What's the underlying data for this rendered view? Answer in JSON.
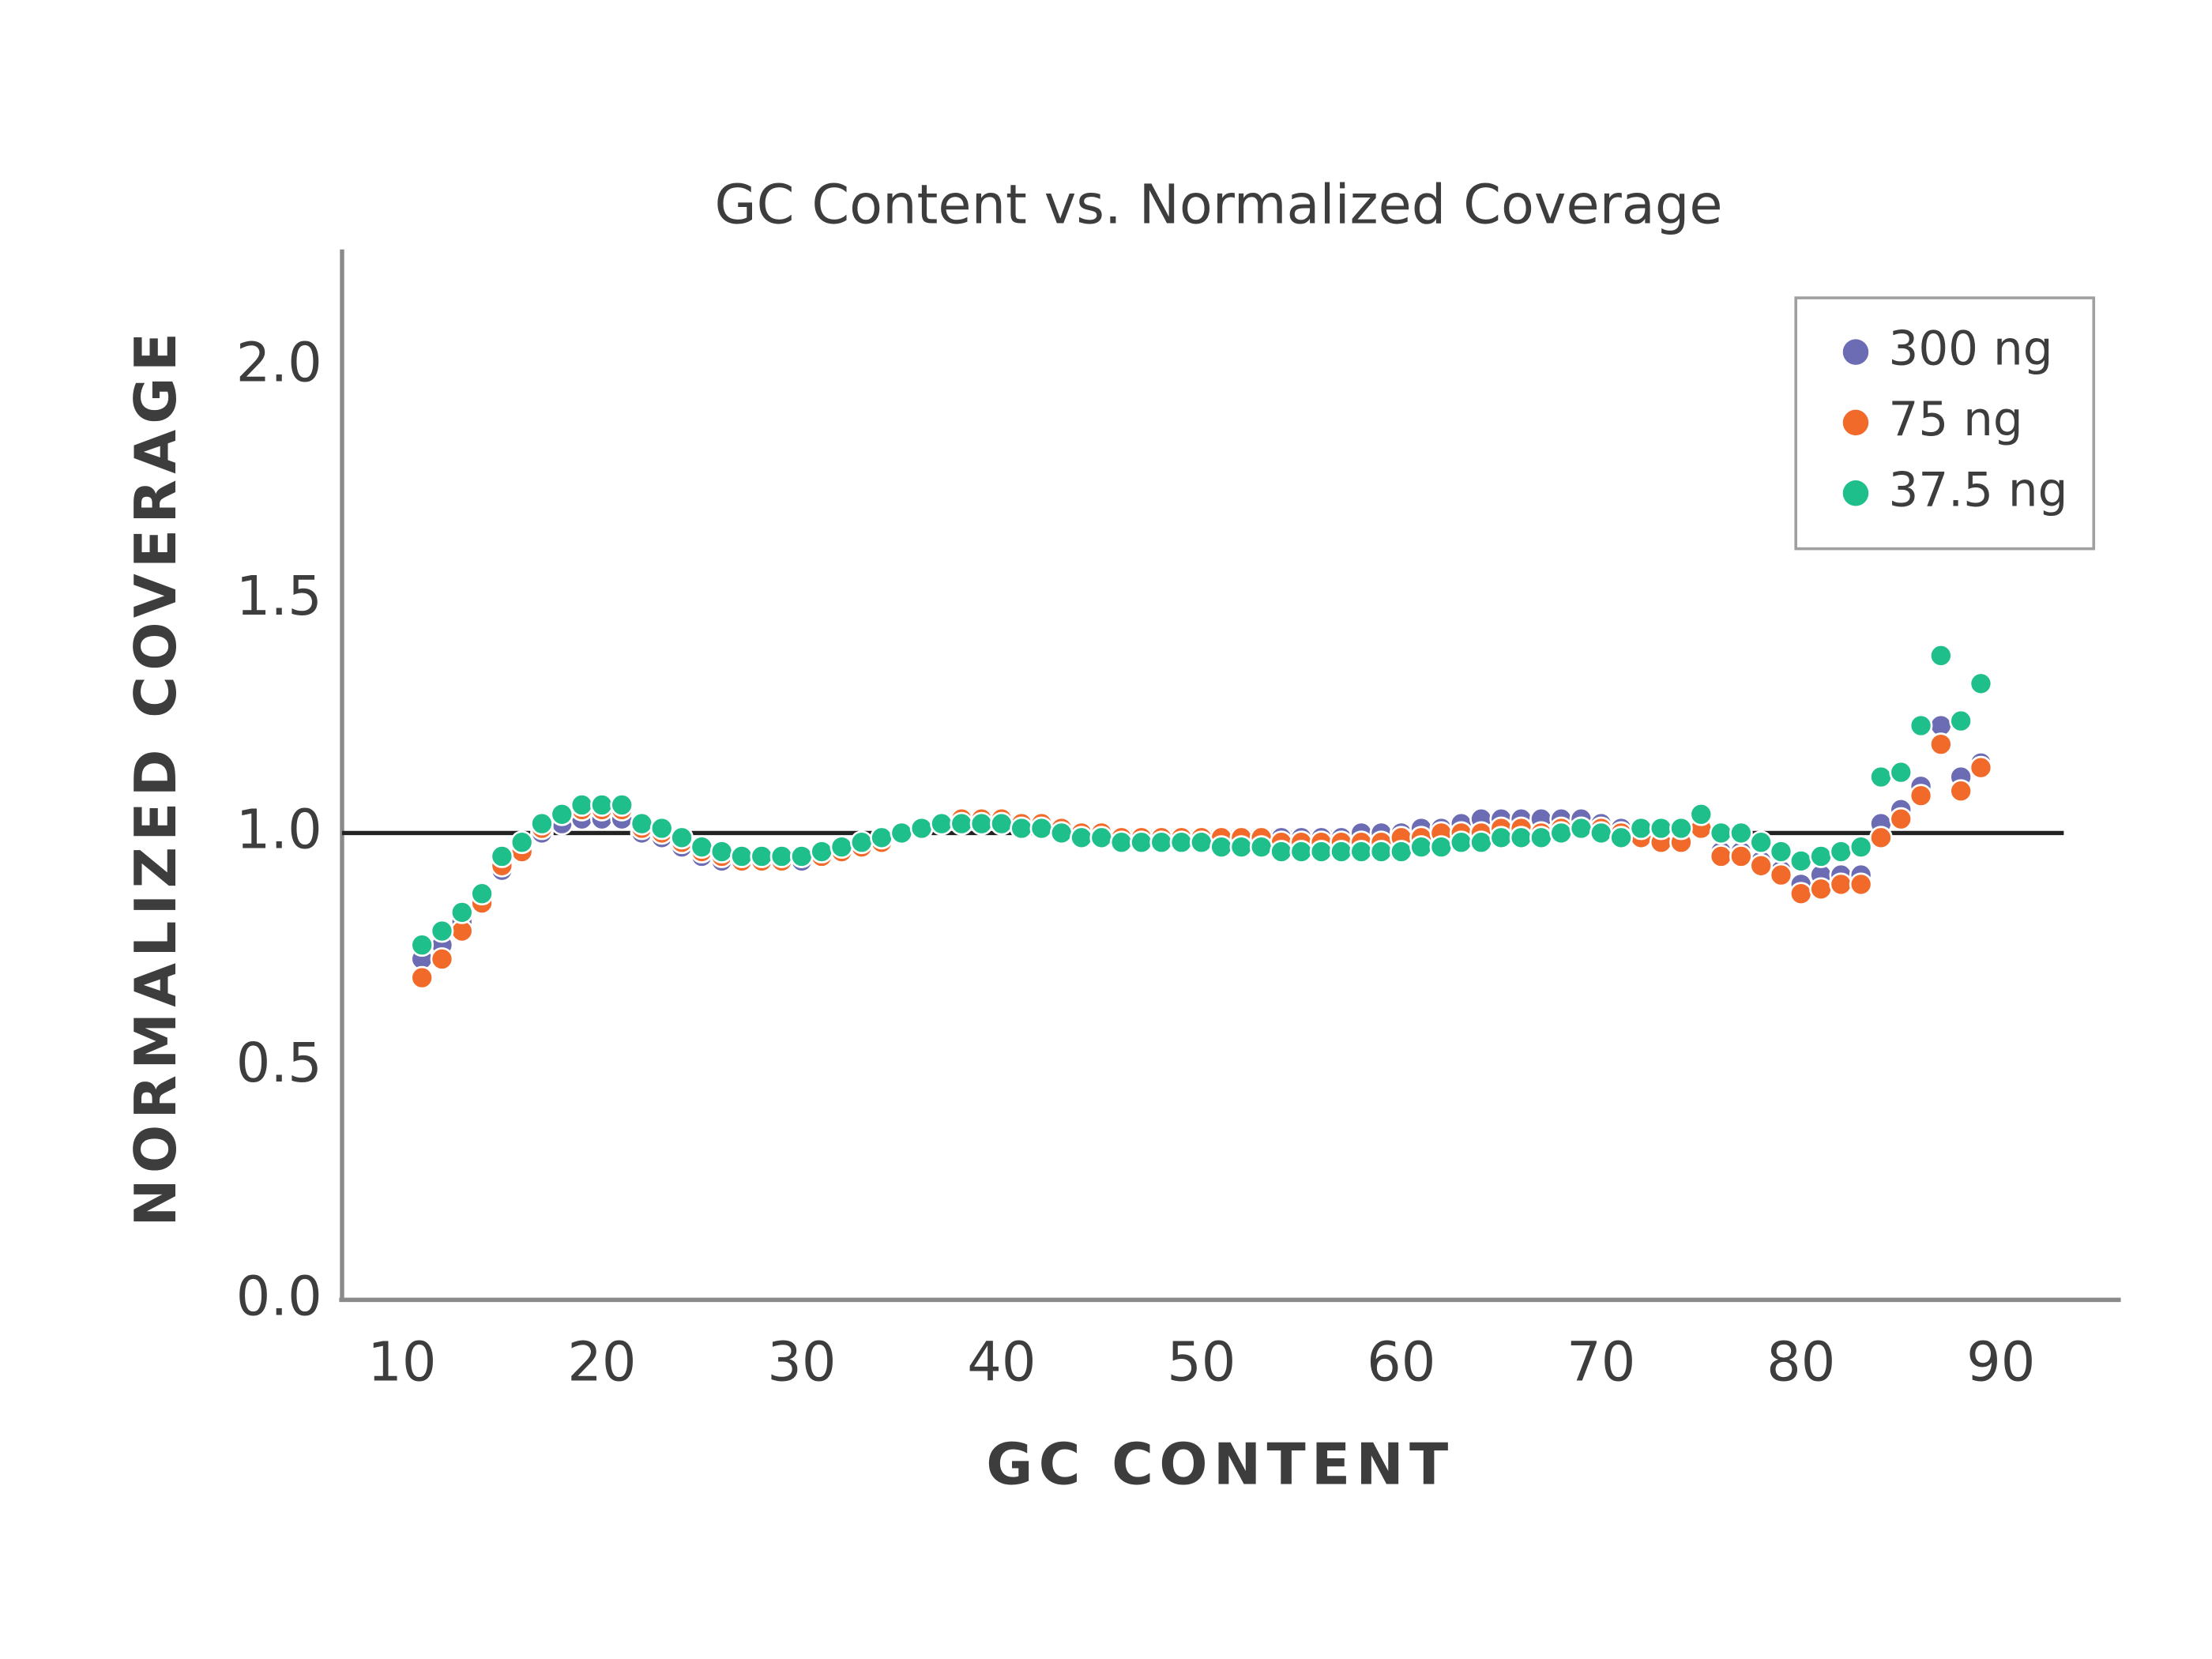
{
  "chart_data": {
    "type": "scatter",
    "title": "GC Content vs. Normalized Coverage",
    "x_label": "GC CONTENT",
    "y_label": "NORMALIZED COVERAGE",
    "xlim": [
      7,
      96
    ],
    "ylim": [
      0,
      2.25
    ],
    "xticks": [
      10,
      20,
      30,
      40,
      50,
      60,
      70,
      80,
      90
    ],
    "yticks": [
      {
        "value": 0,
        "label": "0.0"
      },
      0.5,
      {
        "value": 1,
        "label": "1.0"
      },
      1.5,
      {
        "value": 2,
        "label": "2.0"
      }
    ],
    "grid": false,
    "reference_line": 1,
    "legend": "top-right",
    "x": [
      11,
      12,
      13,
      14,
      15,
      16,
      17,
      18,
      19,
      20,
      21,
      22,
      23,
      24,
      25,
      26,
      27,
      28,
      29,
      30,
      31,
      32,
      33,
      34,
      35,
      36,
      37,
      38,
      39,
      40,
      41,
      42,
      43,
      44,
      45,
      46,
      47,
      48,
      49,
      50,
      51,
      52,
      53,
      54,
      55,
      56,
      57,
      58,
      59,
      60,
      61,
      62,
      63,
      64,
      65,
      66,
      67,
      68,
      69,
      70,
      71,
      72,
      73,
      74,
      75,
      76,
      77,
      78,
      79,
      80,
      81,
      82,
      83,
      84,
      85,
      86,
      87,
      88,
      89
    ],
    "series": [
      {
        "name": "300 ng",
        "color": "#6c6cb4",
        "values": [
          0.73,
          0.76,
          0.81,
          0.86,
          0.92,
          0.96,
          1.0,
          1.02,
          1.03,
          1.03,
          1.03,
          1.0,
          0.99,
          0.97,
          0.95,
          0.94,
          0.94,
          0.94,
          0.94,
          0.94,
          0.95,
          0.96,
          0.97,
          0.98,
          1.0,
          1.01,
          1.02,
          1.02,
          1.02,
          1.02,
          1.02,
          1.01,
          1.01,
          1.0,
          1.0,
          0.99,
          0.99,
          0.99,
          0.99,
          0.99,
          0.99,
          0.99,
          0.99,
          0.99,
          0.99,
          0.99,
          0.99,
          1.0,
          1.0,
          1.0,
          1.01,
          1.01,
          1.02,
          1.03,
          1.03,
          1.03,
          1.03,
          1.03,
          1.03,
          1.02,
          1.01,
          1.0,
          1.0,
          1.0,
          1.01,
          0.96,
          0.96,
          0.94,
          0.92,
          0.89,
          0.91,
          0.91,
          0.91,
          1.02,
          1.05,
          1.1,
          1.23,
          1.12,
          1.15
        ]
      },
      {
        "name": "75 ng",
        "color": "#f26a2a",
        "values": [
          0.69,
          0.73,
          0.79,
          0.85,
          0.93,
          0.96,
          1.01,
          1.04,
          1.05,
          1.05,
          1.05,
          1.01,
          1.0,
          0.98,
          0.96,
          0.95,
          0.94,
          0.94,
          0.94,
          0.95,
          0.95,
          0.96,
          0.97,
          0.98,
          1.0,
          1.01,
          1.02,
          1.03,
          1.03,
          1.03,
          1.02,
          1.02,
          1.01,
          1.0,
          1.0,
          0.99,
          0.99,
          0.99,
          0.99,
          0.99,
          0.99,
          0.99,
          0.99,
          0.98,
          0.98,
          0.98,
          0.98,
          0.98,
          0.98,
          0.99,
          0.99,
          1.0,
          1.0,
          1.0,
          1.01,
          1.01,
          1.0,
          1.01,
          1.01,
          1.01,
          1.0,
          0.99,
          0.98,
          0.98,
          1.01,
          0.95,
          0.95,
          0.93,
          0.91,
          0.87,
          0.88,
          0.89,
          0.89,
          0.99,
          1.03,
          1.08,
          1.19,
          1.09,
          1.14
        ]
      },
      {
        "name": "37.5 ng",
        "color": "#1fbf8c",
        "values": [
          0.76,
          0.79,
          0.83,
          0.87,
          0.95,
          0.98,
          1.02,
          1.04,
          1.06,
          1.06,
          1.06,
          1.02,
          1.01,
          0.99,
          0.97,
          0.96,
          0.95,
          0.95,
          0.95,
          0.95,
          0.96,
          0.97,
          0.98,
          0.99,
          1.0,
          1.01,
          1.02,
          1.02,
          1.02,
          1.02,
          1.01,
          1.01,
          1.0,
          0.99,
          0.99,
          0.98,
          0.98,
          0.98,
          0.98,
          0.98,
          0.97,
          0.97,
          0.97,
          0.96,
          0.96,
          0.96,
          0.96,
          0.96,
          0.96,
          0.96,
          0.97,
          0.97,
          0.98,
          0.98,
          0.99,
          0.99,
          0.99,
          1.0,
          1.01,
          1.0,
          0.99,
          1.01,
          1.01,
          1.01,
          1.04,
          1.0,
          1.0,
          0.98,
          0.96,
          0.94,
          0.95,
          0.96,
          0.97,
          1.12,
          1.13,
          1.23,
          1.38,
          1.24,
          1.32
        ]
      }
    ]
  }
}
